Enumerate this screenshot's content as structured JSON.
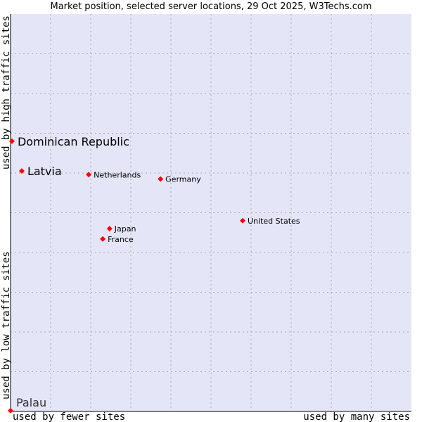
{
  "chart_data": {
    "type": "scatter",
    "title": "Market position, selected server locations, 29 Oct 2025, W3Techs.com",
    "xlabel_left": "used by fewer sites",
    "xlabel_right": "used by many sites",
    "ylabel_bottom": "used by low traffic sites",
    "ylabel_top": "used by high traffic sites",
    "xlim": [
      0,
      100
    ],
    "ylim": [
      0,
      100
    ],
    "grid": true,
    "colors": {
      "plot_bg": "#e4e6f8",
      "point": "#ff0000",
      "grid": "#aaaaaa"
    },
    "points": [
      {
        "label": "Dominican Republic",
        "x": 0.35,
        "y": 68.0,
        "highlighted": true
      },
      {
        "label": "Latvia",
        "x": 2.8,
        "y": 60.5,
        "highlighted": true
      },
      {
        "label": "Netherlands",
        "x": 19.5,
        "y": 59.6,
        "highlighted": false
      },
      {
        "label": "Germany",
        "x": 37.4,
        "y": 58.5,
        "highlighted": false
      },
      {
        "label": "United States",
        "x": 57.9,
        "y": 48.0,
        "highlighted": false
      },
      {
        "label": "Japan",
        "x": 24.7,
        "y": 46.0,
        "highlighted": false
      },
      {
        "label": "France",
        "x": 23.0,
        "y": 43.4,
        "highlighted": false
      },
      {
        "label": "Palau",
        "x": 0.0,
        "y": 0.2,
        "highlighted": true
      }
    ]
  }
}
